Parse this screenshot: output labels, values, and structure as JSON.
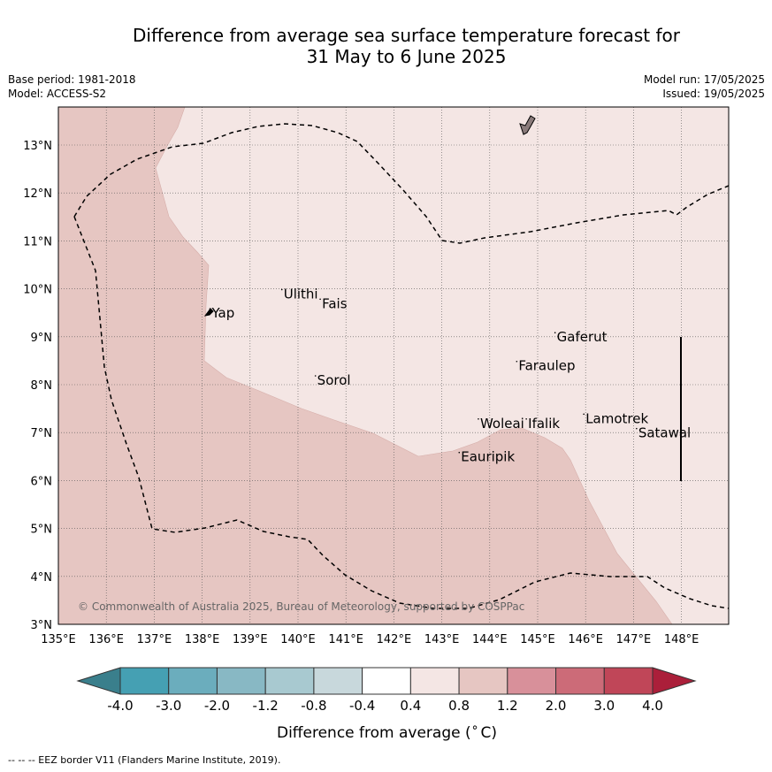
{
  "title": {
    "line1": "Difference from average sea surface temperature forecast for",
    "line2": "31 May to 6 June 2025"
  },
  "meta": {
    "base_period": "Base period: 1981-2018",
    "model": "Model: ACCESS-S2",
    "model_run": "Model run: 17/05/2025",
    "issued": "Issued: 19/05/2025"
  },
  "map": {
    "lon_range": [
      135,
      149
    ],
    "lat_range": [
      3,
      13.8
    ],
    "lon_ticks": [
      "135°E",
      "136°E",
      "137°E",
      "138°E",
      "139°E",
      "140°E",
      "141°E",
      "142°E",
      "143°E",
      "144°E",
      "145°E",
      "146°E",
      "147°E",
      "148°E"
    ],
    "lat_ticks": [
      "3°N",
      "4°N",
      "5°N",
      "6°N",
      "7°N",
      "8°N",
      "9°N",
      "10°N",
      "11°N",
      "12°N",
      "13°N"
    ],
    "places": [
      {
        "name": "Ulithi",
        "lon": 139.7,
        "lat": 9.8
      },
      {
        "name": "Fais",
        "lon": 140.5,
        "lat": 9.6
      },
      {
        "name": "Yap",
        "lon": 138.2,
        "lat": 9.4
      },
      {
        "name": "Gaferut",
        "lon": 145.4,
        "lat": 8.9
      },
      {
        "name": "Faraulep",
        "lon": 144.6,
        "lat": 8.3
      },
      {
        "name": "Sorol",
        "lon": 140.4,
        "lat": 8.0
      },
      {
        "name": "Woleai",
        "lon": 143.8,
        "lat": 7.1
      },
      {
        "name": "Ifalik",
        "lon": 144.8,
        "lat": 7.1
      },
      {
        "name": "Lamotrek",
        "lon": 146.0,
        "lat": 7.2
      },
      {
        "name": "Satawal",
        "lon": 147.1,
        "lat": 6.9
      },
      {
        "name": "Eauripik",
        "lon": 143.4,
        "lat": 6.4
      }
    ],
    "copyright": "© Commonwealth of Australia 2025, Bureau of Meteorology, supported by COSPPac",
    "colors": {
      "warm_0.4_0.8": "#f4e6e4",
      "warm_0.8_1.2": "#e6c6c2",
      "grid": "#555555"
    }
  },
  "colorbar": {
    "boundaries": [
      "-4.0",
      "-3.0",
      "-2.0",
      "-1.2",
      "-0.8",
      "-0.4",
      "0.4",
      "0.8",
      "1.2",
      "2.0",
      "3.0",
      "4.0"
    ],
    "colors": [
      "#45a0b3",
      "#6badbd",
      "#88b8c4",
      "#a8c9d0",
      "#c8d8dc",
      "#ffffff",
      "#f4e6e4",
      "#e6c6c2",
      "#d8909a",
      "#cc6b78",
      "#c04658"
    ],
    "under_color": "#3a7f8c",
    "over_color": "#ab1f3a",
    "label_main": "Difference from average (",
    "label_unit_sup": "∘",
    "label_unit": "C)"
  },
  "footnote": "-- -- -- EEZ border V11 (Flanders Marine Institute, 2019)."
}
